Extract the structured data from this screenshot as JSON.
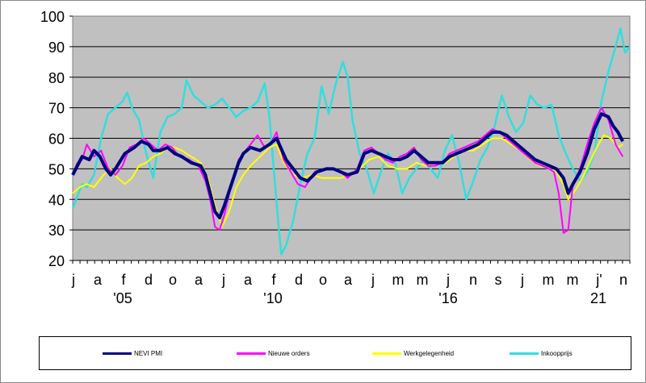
{
  "chart_data": {
    "type": "line",
    "ylim": [
      20,
      100
    ],
    "yticks": [
      20,
      30,
      40,
      50,
      60,
      70,
      80,
      90,
      100
    ],
    "x_tick_labels": [
      "j",
      "a",
      "f",
      "d",
      "o",
      "a",
      "j",
      "a",
      "f",
      "d",
      "o",
      "a",
      "j",
      "m",
      "m",
      "j",
      "n",
      "s",
      "j",
      "m",
      "m",
      "j'",
      "n"
    ],
    "year_labels": [
      "'05",
      "'10",
      "'16",
      "21"
    ],
    "grid": true,
    "legend_position": "bottom",
    "series": [
      {
        "name": "NEVI PMI",
        "color": "#000080",
        "points": [
          [
            0,
            48
          ],
          [
            4,
            51
          ],
          [
            8,
            54
          ],
          [
            14,
            53
          ],
          [
            18,
            56
          ],
          [
            23,
            54
          ],
          [
            28,
            50
          ],
          [
            32,
            48
          ],
          [
            36,
            50
          ],
          [
            44,
            55
          ],
          [
            52,
            57
          ],
          [
            58,
            59
          ],
          [
            64,
            58
          ],
          [
            68,
            56
          ],
          [
            74,
            56
          ],
          [
            80,
            57
          ],
          [
            86,
            55
          ],
          [
            92,
            54
          ],
          [
            100,
            52
          ],
          [
            108,
            51
          ],
          [
            112,
            48
          ],
          [
            116,
            42
          ],
          [
            120,
            36
          ],
          [
            124,
            34
          ],
          [
            128,
            38
          ],
          [
            134,
            45
          ],
          [
            140,
            52
          ],
          [
            144,
            55
          ],
          [
            150,
            57
          ],
          [
            158,
            56
          ],
          [
            166,
            58
          ],
          [
            172,
            60
          ],
          [
            180,
            53
          ],
          [
            186,
            50
          ],
          [
            192,
            47
          ],
          [
            198,
            46
          ],
          [
            206,
            49
          ],
          [
            214,
            50
          ],
          [
            220,
            50
          ],
          [
            226,
            49
          ],
          [
            232,
            48
          ],
          [
            240,
            49
          ],
          [
            246,
            55
          ],
          [
            252,
            56
          ],
          [
            258,
            55
          ],
          [
            264,
            54
          ],
          [
            270,
            53
          ],
          [
            276,
            53
          ],
          [
            282,
            54
          ],
          [
            288,
            56
          ],
          [
            294,
            54
          ],
          [
            300,
            52
          ],
          [
            306,
            52
          ],
          [
            312,
            52
          ],
          [
            318,
            54
          ],
          [
            324,
            55
          ],
          [
            330,
            56
          ],
          [
            336,
            57
          ],
          [
            342,
            58
          ],
          [
            348,
            60
          ],
          [
            354,
            62
          ],
          [
            360,
            62
          ],
          [
            366,
            61
          ],
          [
            372,
            59
          ],
          [
            378,
            57
          ],
          [
            384,
            55
          ],
          [
            390,
            53
          ],
          [
            396,
            52
          ],
          [
            402,
            51
          ],
          [
            408,
            50
          ],
          [
            414,
            47
          ],
          [
            418,
            42
          ],
          [
            422,
            45
          ],
          [
            428,
            49
          ],
          [
            434,
            55
          ],
          [
            440,
            63
          ],
          [
            446,
            68
          ],
          [
            452,
            67
          ],
          [
            456,
            64
          ],
          [
            460,
            62
          ],
          [
            464,
            59
          ]
        ]
      },
      {
        "name": "Nieuwe orders",
        "color": "#ff00ff",
        "points": [
          [
            0,
            48
          ],
          [
            4,
            52
          ],
          [
            8,
            53
          ],
          [
            12,
            58
          ],
          [
            18,
            54
          ],
          [
            24,
            56
          ],
          [
            30,
            50
          ],
          [
            36,
            48
          ],
          [
            42,
            51
          ],
          [
            48,
            57
          ],
          [
            54,
            58
          ],
          [
            60,
            60
          ],
          [
            66,
            58
          ],
          [
            72,
            56
          ],
          [
            78,
            58
          ],
          [
            84,
            57
          ],
          [
            90,
            54
          ],
          [
            98,
            53
          ],
          [
            106,
            51
          ],
          [
            112,
            46
          ],
          [
            116,
            40
          ],
          [
            120,
            31
          ],
          [
            124,
            30
          ],
          [
            128,
            35
          ],
          [
            134,
            45
          ],
          [
            140,
            53
          ],
          [
            144,
            55
          ],
          [
            150,
            58
          ],
          [
            156,
            61
          ],
          [
            162,
            57
          ],
          [
            168,
            59
          ],
          [
            172,
            62
          ],
          [
            178,
            53
          ],
          [
            184,
            49
          ],
          [
            190,
            45
          ],
          [
            196,
            44
          ],
          [
            204,
            49
          ],
          [
            212,
            50
          ],
          [
            220,
            50
          ],
          [
            226,
            49
          ],
          [
            232,
            47
          ],
          [
            240,
            50
          ],
          [
            246,
            56
          ],
          [
            252,
            57
          ],
          [
            258,
            55
          ],
          [
            264,
            53
          ],
          [
            270,
            52
          ],
          [
            276,
            54
          ],
          [
            282,
            55
          ],
          [
            288,
            57
          ],
          [
            294,
            53
          ],
          [
            300,
            51
          ],
          [
            306,
            51
          ],
          [
            312,
            52
          ],
          [
            318,
            55
          ],
          [
            324,
            56
          ],
          [
            330,
            57
          ],
          [
            336,
            58
          ],
          [
            342,
            59
          ],
          [
            348,
            61
          ],
          [
            354,
            63
          ],
          [
            360,
            62
          ],
          [
            366,
            60
          ],
          [
            372,
            58
          ],
          [
            378,
            56
          ],
          [
            384,
            54
          ],
          [
            390,
            52
          ],
          [
            396,
            51
          ],
          [
            402,
            50
          ],
          [
            406,
            49
          ],
          [
            410,
            42
          ],
          [
            414,
            29
          ],
          [
            418,
            30
          ],
          [
            422,
            45
          ],
          [
            428,
            50
          ],
          [
            434,
            58
          ],
          [
            440,
            65
          ],
          [
            446,
            70
          ],
          [
            452,
            66
          ],
          [
            458,
            58
          ],
          [
            464,
            54
          ]
        ]
      },
      {
        "name": "Werkgelegenheid",
        "color": "#ffff00",
        "points": [
          [
            0,
            42
          ],
          [
            6,
            44
          ],
          [
            12,
            45
          ],
          [
            18,
            44
          ],
          [
            26,
            48
          ],
          [
            32,
            50
          ],
          [
            38,
            47
          ],
          [
            44,
            45
          ],
          [
            50,
            47
          ],
          [
            56,
            51
          ],
          [
            62,
            52
          ],
          [
            68,
            54
          ],
          [
            74,
            55
          ],
          [
            80,
            57
          ],
          [
            86,
            57
          ],
          [
            92,
            56
          ],
          [
            100,
            54
          ],
          [
            108,
            52
          ],
          [
            114,
            47
          ],
          [
            120,
            38
          ],
          [
            126,
            31
          ],
          [
            132,
            36
          ],
          [
            138,
            44
          ],
          [
            144,
            48
          ],
          [
            150,
            51
          ],
          [
            158,
            54
          ],
          [
            166,
            57
          ],
          [
            172,
            58
          ],
          [
            178,
            52
          ],
          [
            186,
            48
          ],
          [
            194,
            47
          ],
          [
            202,
            48
          ],
          [
            210,
            47
          ],
          [
            218,
            47
          ],
          [
            226,
            47
          ],
          [
            234,
            48
          ],
          [
            242,
            50
          ],
          [
            250,
            53
          ],
          [
            258,
            54
          ],
          [
            266,
            51
          ],
          [
            274,
            50
          ],
          [
            282,
            50
          ],
          [
            290,
            52
          ],
          [
            298,
            51
          ],
          [
            306,
            52
          ],
          [
            314,
            52
          ],
          [
            322,
            54
          ],
          [
            330,
            56
          ],
          [
            338,
            56
          ],
          [
            346,
            58
          ],
          [
            354,
            60
          ],
          [
            362,
            60
          ],
          [
            370,
            58
          ],
          [
            378,
            56
          ],
          [
            386,
            53
          ],
          [
            394,
            51
          ],
          [
            402,
            50
          ],
          [
            408,
            49
          ],
          [
            414,
            45
          ],
          [
            418,
            40
          ],
          [
            424,
            43
          ],
          [
            430,
            47
          ],
          [
            436,
            52
          ],
          [
            442,
            57
          ],
          [
            448,
            61
          ],
          [
            454,
            60
          ],
          [
            460,
            57
          ],
          [
            464,
            58
          ]
        ]
      },
      {
        "name": "Inkoopprijs",
        "color": "#33dddd",
        "points": [
          [
            0,
            37
          ],
          [
            4,
            41
          ],
          [
            8,
            45
          ],
          [
            12,
            44
          ],
          [
            18,
            48
          ],
          [
            24,
            60
          ],
          [
            30,
            68
          ],
          [
            36,
            70
          ],
          [
            42,
            72
          ],
          [
            46,
            75
          ],
          [
            50,
            70
          ],
          [
            56,
            66
          ],
          [
            62,
            55
          ],
          [
            68,
            47
          ],
          [
            74,
            62
          ],
          [
            80,
            67
          ],
          [
            86,
            68
          ],
          [
            92,
            70
          ],
          [
            96,
            79
          ],
          [
            102,
            74
          ],
          [
            108,
            72
          ],
          [
            114,
            70
          ],
          [
            120,
            71
          ],
          [
            126,
            73
          ],
          [
            132,
            70
          ],
          [
            138,
            67
          ],
          [
            144,
            69
          ],
          [
            150,
            70
          ],
          [
            156,
            72
          ],
          [
            162,
            78
          ],
          [
            166,
            67
          ],
          [
            170,
            48
          ],
          [
            174,
            30
          ],
          [
            176,
            22
          ],
          [
            180,
            25
          ],
          [
            186,
            33
          ],
          [
            192,
            45
          ],
          [
            198,
            55
          ],
          [
            204,
            60
          ],
          [
            210,
            77
          ],
          [
            216,
            68
          ],
          [
            222,
            78
          ],
          [
            228,
            85
          ],
          [
            232,
            80
          ],
          [
            236,
            66
          ],
          [
            242,
            55
          ],
          [
            248,
            50
          ],
          [
            254,
            42
          ],
          [
            260,
            49
          ],
          [
            266,
            55
          ],
          [
            272,
            52
          ],
          [
            278,
            42
          ],
          [
            284,
            47
          ],
          [
            290,
            50
          ],
          [
            296,
            53
          ],
          [
            302,
            50
          ],
          [
            308,
            47
          ],
          [
            314,
            56
          ],
          [
            320,
            61
          ],
          [
            326,
            52
          ],
          [
            332,
            40
          ],
          [
            338,
            46
          ],
          [
            344,
            53
          ],
          [
            350,
            57
          ],
          [
            356,
            64
          ],
          [
            362,
            74
          ],
          [
            368,
            67
          ],
          [
            374,
            62
          ],
          [
            380,
            65
          ],
          [
            386,
            74
          ],
          [
            392,
            71
          ],
          [
            398,
            70
          ],
          [
            404,
            71
          ],
          [
            410,
            61
          ],
          [
            416,
            55
          ],
          [
            422,
            50
          ],
          [
            428,
            46
          ],
          [
            434,
            49
          ],
          [
            440,
            55
          ],
          [
            446,
            72
          ],
          [
            452,
            82
          ],
          [
            458,
            90
          ],
          [
            462,
            96
          ],
          [
            466,
            88
          ],
          [
            470,
            90
          ]
        ]
      }
    ]
  }
}
